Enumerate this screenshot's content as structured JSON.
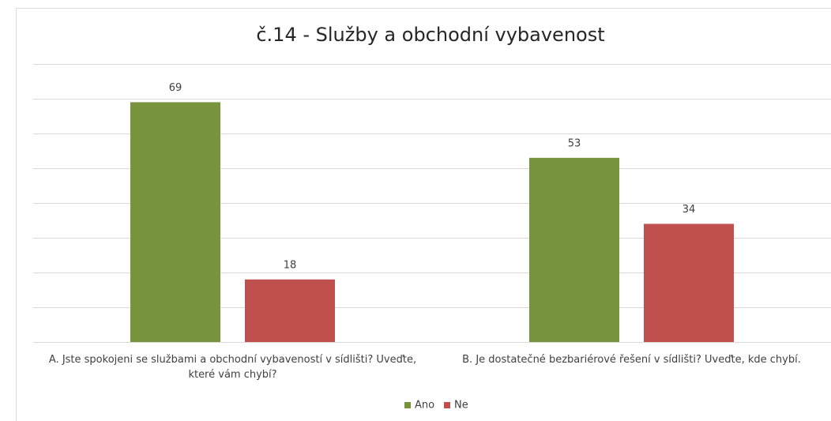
{
  "chart_data": {
    "type": "bar",
    "title": "č.14 - Služby a obchodní vybavenost",
    "categories": [
      "A. Jste spokojeni se službami a obchodní vybaveností v sídlišti? Uveďte, které vám chybí?",
      "B. Je dostatečné bezbariérové řešení v sídlišti? Uveďte, kde chybí."
    ],
    "series": [
      {
        "name": "Ano",
        "color": "#77933c",
        "values": [
          69,
          53
        ]
      },
      {
        "name": "Ne",
        "color": "#c0504d",
        "values": [
          18,
          34
        ]
      }
    ],
    "ylim": [
      0,
      80
    ],
    "yticks": [
      0,
      10,
      20,
      30,
      40,
      50,
      60,
      70,
      80
    ],
    "grid": true,
    "legend": "bottom"
  }
}
